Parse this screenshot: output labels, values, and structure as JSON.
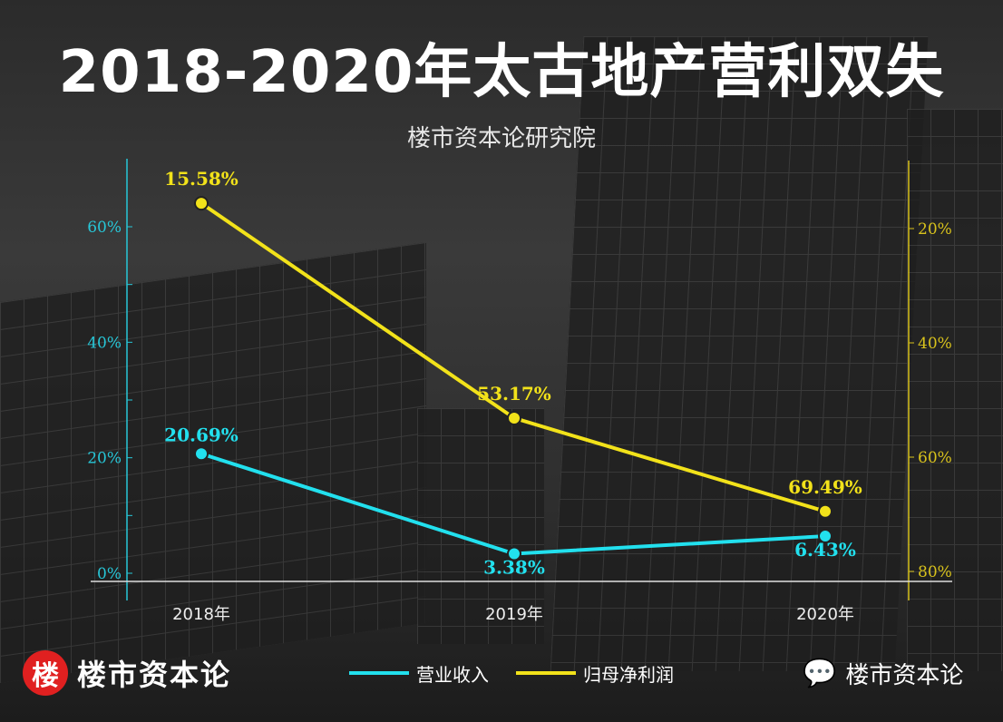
{
  "title": "2018-2020年太古地产营利双失",
  "subtitle": "楼市资本论研究院",
  "chart_data": {
    "type": "line",
    "title": "2018-2020年太古地产营利双失",
    "categories": [
      "2018年",
      "2019年",
      "2020年"
    ],
    "left_axis": {
      "ticks": [
        "0%",
        "20%",
        "40%",
        "60%"
      ],
      "range": [
        0,
        60
      ],
      "color": "#27c7d8"
    },
    "right_axis": {
      "ticks": [
        "20%",
        "40%",
        "60%",
        "80%"
      ],
      "range": [
        20,
        80
      ],
      "inverted": true,
      "color": "#d8c21c"
    },
    "series": [
      {
        "name": "营业收入",
        "axis": "left",
        "color": "#22e0ee",
        "values": [
          20.69,
          3.38,
          6.43
        ],
        "labels": [
          "20.69%",
          "3.38%",
          "6.43%"
        ]
      },
      {
        "name": "归母净利润",
        "axis": "right",
        "color": "#f2e21a",
        "values": [
          15.58,
          53.17,
          69.49
        ],
        "labels": [
          "15.58%",
          "53.17%",
          "69.49%"
        ]
      }
    ],
    "legend_position": "bottom"
  },
  "footer": {
    "logo_char": "楼",
    "brand": "楼市资本论",
    "wechat_name": "楼市资本论"
  }
}
